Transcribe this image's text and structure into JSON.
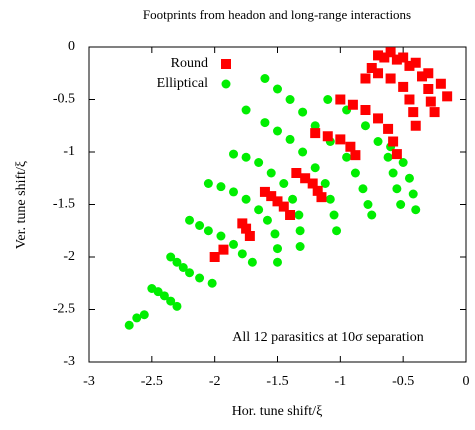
{
  "chart_data": {
    "type": "scatter",
    "title": "Footprints from headon and long-range interactions",
    "x_label": "Hor. tune shift/ξ",
    "y_label": "Ver. tune shift/ξ",
    "annotation": "All 12 parasitics at 10σ separation",
    "xlim": [
      -3,
      0
    ],
    "ylim": [
      -3,
      0
    ],
    "xticks": [
      -3,
      -2.5,
      -2,
      -1.5,
      -1,
      -0.5,
      0
    ],
    "yticks": [
      -3,
      -2.5,
      -2,
      -1.5,
      -1,
      -0.5,
      0
    ],
    "legend": "upper left",
    "series": [
      {
        "name": "Round",
        "color": "#ff0000",
        "marker": "square",
        "x": [
          -2.0,
          -1.93,
          -1.78,
          -1.75,
          -1.72,
          -1.6,
          -1.55,
          -1.5,
          -1.45,
          -1.4,
          -1.35,
          -1.28,
          -1.22,
          -1.18,
          -1.15,
          -1.2,
          -1.1,
          -1.0,
          -0.92,
          -0.88,
          -1.0,
          -0.9,
          -0.8,
          -0.7,
          -0.62,
          -0.58,
          -0.55,
          -0.8,
          -0.7,
          -0.6,
          -0.5,
          -0.45,
          -0.42,
          -0.4,
          -0.65,
          -0.55,
          -0.45,
          -0.35,
          -0.3,
          -0.28,
          -0.25,
          -0.75,
          -0.7,
          -0.6,
          -0.5,
          -0.4,
          -0.3,
          -0.2,
          -0.15
        ],
        "y": [
          -2.0,
          -1.93,
          -1.68,
          -1.73,
          -1.8,
          -1.38,
          -1.42,
          -1.47,
          -1.52,
          -1.6,
          -1.2,
          -1.25,
          -1.3,
          -1.37,
          -1.43,
          -0.82,
          -0.85,
          -0.88,
          -0.95,
          -1.03,
          -0.5,
          -0.55,
          -0.6,
          -0.68,
          -0.78,
          -0.9,
          -1.02,
          -0.3,
          -0.25,
          -0.3,
          -0.38,
          -0.5,
          -0.62,
          -0.75,
          -0.1,
          -0.12,
          -0.18,
          -0.28,
          -0.4,
          -0.52,
          -0.62,
          -0.2,
          -0.08,
          -0.05,
          -0.1,
          -0.15,
          -0.25,
          -0.35,
          -0.47
        ]
      },
      {
        "name": "Elliptical",
        "color": "#00ee00",
        "marker": "circle",
        "x": [
          -2.68,
          -2.62,
          -2.56,
          -2.5,
          -2.45,
          -2.4,
          -2.35,
          -2.3,
          -2.35,
          -2.3,
          -2.25,
          -2.2,
          -2.12,
          -2.02,
          -2.2,
          -2.12,
          -2.05,
          -1.95,
          -1.85,
          -1.78,
          -1.7,
          -2.05,
          -1.95,
          -1.85,
          -1.75,
          -1.65,
          -1.58,
          -1.52,
          -1.5,
          -1.5,
          -1.85,
          -1.75,
          -1.65,
          -1.55,
          -1.45,
          -1.38,
          -1.33,
          -1.32,
          -1.32,
          -1.75,
          -1.6,
          -1.5,
          -1.4,
          -1.3,
          -1.2,
          -1.12,
          -1.08,
          -1.05,
          -1.03,
          -1.6,
          -1.5,
          -1.4,
          -1.3,
          -1.2,
          -1.08,
          -0.95,
          -0.88,
          -0.82,
          -0.78,
          -0.75,
          -1.1,
          -0.95,
          -0.8,
          -0.7,
          -0.62,
          -0.58,
          -0.55,
          -0.52,
          -0.6,
          -0.5,
          -0.45,
          -0.42,
          -0.4
        ],
        "y": [
          -2.65,
          -2.58,
          -2.55,
          -2.3,
          -2.33,
          -2.37,
          -2.42,
          -2.47,
          -2.0,
          -2.05,
          -2.1,
          -2.15,
          -2.2,
          -2.25,
          -1.65,
          -1.7,
          -1.75,
          -1.8,
          -1.88,
          -1.97,
          -2.05,
          -1.3,
          -1.33,
          -1.38,
          -1.45,
          -1.55,
          -1.65,
          -1.78,
          -1.92,
          -2.05,
          -1.02,
          -1.05,
          -1.1,
          -1.2,
          -1.3,
          -1.45,
          -1.6,
          -1.75,
          -1.9,
          -0.6,
          -0.72,
          -0.8,
          -0.88,
          -1.0,
          -1.15,
          -1.3,
          -1.45,
          -1.6,
          -1.75,
          -0.3,
          -0.4,
          -0.5,
          -0.62,
          -0.75,
          -0.9,
          -1.05,
          -1.2,
          -1.35,
          -1.5,
          -1.6,
          -0.5,
          -0.6,
          -0.75,
          -0.9,
          -1.05,
          -1.2,
          -1.35,
          -1.5,
          -0.95,
          -1.1,
          -1.25,
          -1.4,
          -1.55
        ]
      }
    ]
  }
}
